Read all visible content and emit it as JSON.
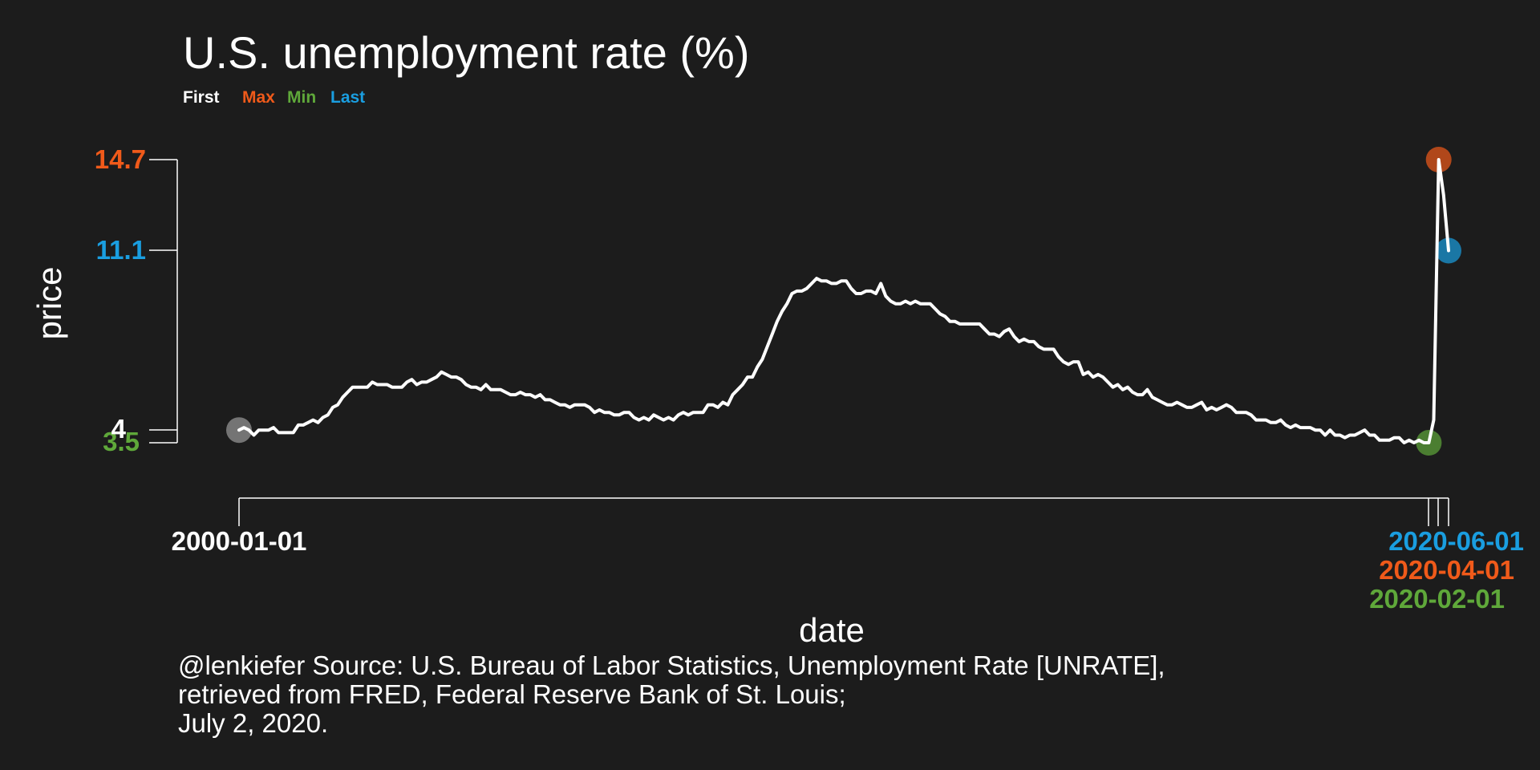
{
  "colors": {
    "background": "#1c1c1c",
    "line": "#ffffff",
    "first": "#ffffff",
    "first_dot": "#9a9a9a",
    "max": "#f05a1a",
    "min": "#5fa83a",
    "last": "#1a9ee0"
  },
  "chart_data": {
    "type": "line",
    "title": "U.S. unemployment rate (%)",
    "xlabel": "date",
    "ylabel": "price",
    "legend": [
      {
        "key": "first",
        "label": "First"
      },
      {
        "key": "max",
        "label": "Max"
      },
      {
        "key": "min",
        "label": "Min"
      },
      {
        "key": "last",
        "label": "Last"
      }
    ],
    "x_ticks": [
      {
        "key": "first",
        "label": "2000-01-01"
      },
      {
        "key": "min",
        "label": "2020-02-01"
      },
      {
        "key": "max",
        "label": "2020-04-01"
      },
      {
        "key": "last",
        "label": "2020-06-01"
      }
    ],
    "y_ticks": [
      {
        "key": "min",
        "value": 3.5,
        "label": "3.5"
      },
      {
        "key": "first",
        "value": 4,
        "label": "4"
      },
      {
        "key": "last",
        "value": 11.1,
        "label": "11.1"
      },
      {
        "key": "max",
        "value": 14.7,
        "label": "14.7"
      }
    ],
    "highlights": [
      {
        "key": "first",
        "date": "2000-01-01",
        "value": 4.0
      },
      {
        "key": "min",
        "date": "2020-02-01",
        "value": 3.5
      },
      {
        "key": "max",
        "date": "2020-04-01",
        "value": 14.7
      },
      {
        "key": "last",
        "date": "2020-06-01",
        "value": 11.1
      }
    ],
    "ylim": [
      3.5,
      14.7
    ],
    "start": "2000-01",
    "series": [
      {
        "values": [
          4.0,
          4.1,
          4.0,
          3.8,
          4.0,
          4.0,
          4.0,
          4.1,
          3.9,
          3.9,
          3.9,
          3.9,
          4.2,
          4.2,
          4.3,
          4.4,
          4.3,
          4.5,
          4.6,
          4.9,
          5.0,
          5.3,
          5.5,
          5.7,
          5.7,
          5.7,
          5.7,
          5.9,
          5.8,
          5.8,
          5.8,
          5.7,
          5.7,
          5.7,
          5.9,
          6.0,
          5.8,
          5.9,
          5.9,
          6.0,
          6.1,
          6.3,
          6.2,
          6.1,
          6.1,
          6.0,
          5.8,
          5.7,
          5.7,
          5.6,
          5.8,
          5.6,
          5.6,
          5.6,
          5.5,
          5.4,
          5.4,
          5.5,
          5.4,
          5.4,
          5.3,
          5.4,
          5.2,
          5.2,
          5.1,
          5.0,
          5.0,
          4.9,
          5.0,
          5.0,
          5.0,
          4.9,
          4.7,
          4.8,
          4.7,
          4.7,
          4.6,
          4.6,
          4.7,
          4.7,
          4.5,
          4.4,
          4.5,
          4.4,
          4.6,
          4.5,
          4.4,
          4.5,
          4.4,
          4.6,
          4.7,
          4.6,
          4.7,
          4.7,
          4.7,
          5.0,
          5.0,
          4.9,
          5.1,
          5.0,
          5.4,
          5.6,
          5.8,
          6.1,
          6.1,
          6.5,
          6.8,
          7.3,
          7.8,
          8.3,
          8.7,
          9.0,
          9.4,
          9.5,
          9.5,
          9.6,
          9.8,
          10.0,
          9.9,
          9.9,
          9.8,
          9.8,
          9.9,
          9.9,
          9.6,
          9.4,
          9.4,
          9.5,
          9.5,
          9.4,
          9.8,
          9.3,
          9.1,
          9.0,
          9.0,
          9.1,
          9.0,
          9.1,
          9.0,
          9.0,
          9.0,
          8.8,
          8.6,
          8.5,
          8.3,
          8.3,
          8.2,
          8.2,
          8.2,
          8.2,
          8.2,
          8.0,
          7.8,
          7.8,
          7.7,
          7.9,
          8.0,
          7.7,
          7.5,
          7.6,
          7.5,
          7.5,
          7.3,
          7.2,
          7.2,
          7.2,
          6.9,
          6.7,
          6.6,
          6.7,
          6.7,
          6.2,
          6.3,
          6.1,
          6.2,
          6.1,
          5.9,
          5.7,
          5.8,
          5.6,
          5.7,
          5.5,
          5.4,
          5.4,
          5.6,
          5.3,
          5.2,
          5.1,
          5.0,
          5.0,
          5.1,
          5.0,
          4.9,
          4.9,
          5.0,
          5.1,
          4.8,
          4.9,
          4.8,
          4.9,
          5.0,
          4.9,
          4.7,
          4.7,
          4.7,
          4.6,
          4.4,
          4.4,
          4.4,
          4.3,
          4.3,
          4.4,
          4.2,
          4.1,
          4.2,
          4.1,
          4.1,
          4.1,
          4.0,
          4.0,
          3.8,
          4.0,
          3.8,
          3.8,
          3.7,
          3.8,
          3.8,
          3.9,
          4.0,
          3.8,
          3.8,
          3.6,
          3.6,
          3.6,
          3.7,
          3.7,
          3.5,
          3.6,
          3.5,
          3.6,
          3.5,
          3.5,
          4.4,
          14.7,
          13.3,
          11.1
        ]
      }
    ]
  },
  "caption": {
    "line1": "@lenkiefer Source: U.S. Bureau of Labor Statistics, Unemployment Rate [UNRATE],",
    "line2": "retrieved from FRED, Federal Reserve Bank of St. Louis;",
    "line3": "July 2, 2020."
  }
}
